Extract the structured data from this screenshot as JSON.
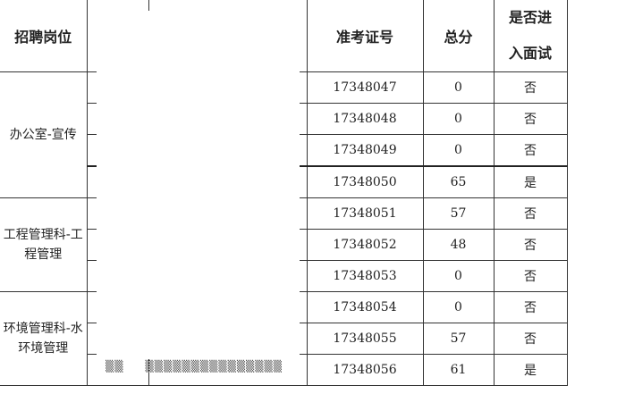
{
  "headers": {
    "position": "招聘岗位",
    "name": "",
    "id_number": "",
    "exam_no": "准考证号",
    "score": "总分",
    "interview_line1": "是否进",
    "interview_line2": "入面试"
  },
  "groups": [
    {
      "position": "办公室-宣传",
      "rows": [
        {
          "exam_no": "17348047",
          "score": "0",
          "interview": "否"
        },
        {
          "exam_no": "17348048",
          "score": "0",
          "interview": "否"
        },
        {
          "exam_no": "17348049",
          "score": "0",
          "interview": "否"
        },
        {
          "exam_no": "17348050",
          "score": "65",
          "interview": "是"
        }
      ]
    },
    {
      "position": "工程管理科-工程管理",
      "rows": [
        {
          "exam_no": "17348051",
          "score": "57",
          "interview": "否"
        },
        {
          "exam_no": "17348052",
          "score": "48",
          "interview": "否"
        },
        {
          "exam_no": "17348053",
          "score": "0",
          "interview": "否"
        }
      ]
    },
    {
      "position": "环境管理科-水环境管理",
      "rows": [
        {
          "exam_no": "17348054",
          "score": "0",
          "interview": "否"
        },
        {
          "exam_no": "17348055",
          "score": "57",
          "interview": "否"
        },
        {
          "exam_no": "17348056",
          "score": "61",
          "interview": "是"
        }
      ]
    }
  ]
}
